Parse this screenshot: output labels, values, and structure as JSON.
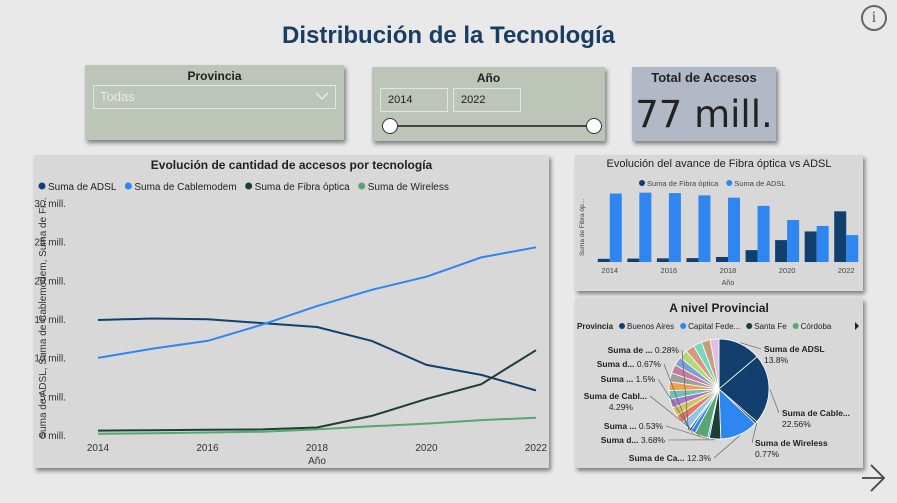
{
  "header": {
    "title": "Distribución de la Tecnología",
    "info_glyph": "i"
  },
  "slicer_provincia": {
    "title": "Provincia",
    "selected": "Todas"
  },
  "slicer_anio": {
    "title": "Año",
    "from": "2014",
    "to": "2022",
    "range_min": 2014,
    "range_max": 2022,
    "selected_min": 2014,
    "selected_max": 2022
  },
  "kpi": {
    "title": "Total de Accesos",
    "value": "77 mill."
  },
  "colors": {
    "adsl": "#12406e",
    "cable": "#2f86f0",
    "fibra": "#1d3f32",
    "wireless": "#5aa672"
  },
  "chart_data": [
    {
      "type": "line",
      "title": "Evolución de cantidad de accesos por tecnología",
      "xlabel": "Año",
      "ylabel": "Suma de ADSL, Suma de Cablemodem, Suma de Fi...",
      "x": [
        2014,
        2015,
        2016,
        2017,
        2018,
        2019,
        2020,
        2021,
        2022
      ],
      "xticks": [
        "2014",
        "2016",
        "2018",
        "2020",
        "2022"
      ],
      "yticks": [
        "0 mill.",
        "5 mill.",
        "10 mill.",
        "15 mill.",
        "20 mill.",
        "25 mill.",
        "30 mill."
      ],
      "ylim": [
        0,
        30
      ],
      "legend_position": "top-left",
      "series": [
        {
          "name": "Suma de ADSL",
          "color": "#12406e",
          "values": [
            15.0,
            15.2,
            15.1,
            14.6,
            14.1,
            12.3,
            9.2,
            7.9,
            5.9
          ]
        },
        {
          "name": "Suma de Cablemodem",
          "color": "#2f86f0",
          "values": [
            10.1,
            11.3,
            12.3,
            14.4,
            16.8,
            18.9,
            20.6,
            23.1,
            24.4
          ]
        },
        {
          "name": "Suma de Fibra óptica",
          "color": "#1d3f32",
          "values": [
            0.7,
            0.75,
            0.8,
            0.85,
            1.1,
            2.6,
            4.8,
            6.7,
            11.1
          ]
        },
        {
          "name": "Suma de Wireless",
          "color": "#5aa672",
          "values": [
            0.3,
            0.35,
            0.45,
            0.55,
            0.85,
            1.25,
            1.6,
            2.05,
            2.35
          ]
        }
      ]
    },
    {
      "type": "bar",
      "title": "Evolución del avance de Fibra óptica vs ADSL",
      "xlabel": "Año",
      "ylabel": "Suma de Fibra óp...",
      "categories": [
        "2014",
        "2015",
        "2016",
        "2017",
        "2018",
        "2019",
        "2020",
        "2021",
        "2022"
      ],
      "xticks": [
        "2014",
        "2016",
        "2018",
        "2020",
        "2022"
      ],
      "legend_position": "top-center",
      "series": [
        {
          "name": "Suma de Fibra óptica",
          "color": "#12406e",
          "values": [
            0.7,
            0.75,
            0.8,
            0.85,
            1.1,
            2.6,
            4.8,
            6.7,
            11.1
          ]
        },
        {
          "name": "Suma de ADSL",
          "color": "#2f86f0",
          "values": [
            15.0,
            15.2,
            15.1,
            14.6,
            14.1,
            12.3,
            9.2,
            7.9,
            5.9
          ]
        }
      ]
    },
    {
      "type": "pie",
      "title": "A nivel Provincial",
      "legend_title": "Provincia",
      "legend": [
        {
          "name": "Buenos Aires",
          "color": "#12406e"
        },
        {
          "name": "Capital Fede...",
          "color": "#2f86f0"
        },
        {
          "name": "Santa Fe",
          "color": "#1d3f32"
        },
        {
          "name": "Córdoba",
          "color": "#5aa672"
        }
      ],
      "slices": [
        {
          "name": "Suma de ADSL",
          "pct": "13.8%",
          "value": 13.8,
          "color": "#12406e"
        },
        {
          "name": "Suma de Cable...",
          "pct": "22.56%",
          "value": 22.56,
          "color": "#12406e"
        },
        {
          "name": "Suma de Wireless",
          "pct": "0.77%",
          "value": 0.77,
          "color": "#1d3f32"
        },
        {
          "name": "Suma de Ca...",
          "pct": "12.3%",
          "value": 12.3,
          "color": "#2f86f0"
        },
        {
          "name": "Suma d...",
          "pct": "3.68%",
          "value": 3.68,
          "color": "#1d3f32"
        },
        {
          "name": "Suma ...",
          "pct": "0.53%",
          "value": 0.53,
          "color": "#2f86f0"
        },
        {
          "name": "Suma de Cabl...",
          "pct": "4.29%",
          "value": 4.29,
          "color": "#5aa672"
        },
        {
          "name": "Suma ...",
          "pct": "1.5%",
          "value": 1.5,
          "color": "#2f86f0"
        },
        {
          "name": "Suma d...",
          "pct": "0.67%",
          "value": 0.67,
          "color": "#12406e"
        },
        {
          "name": "Suma de ...",
          "pct": "0.28%",
          "value": 0.28,
          "color": "#1d3f32"
        }
      ]
    }
  ]
}
